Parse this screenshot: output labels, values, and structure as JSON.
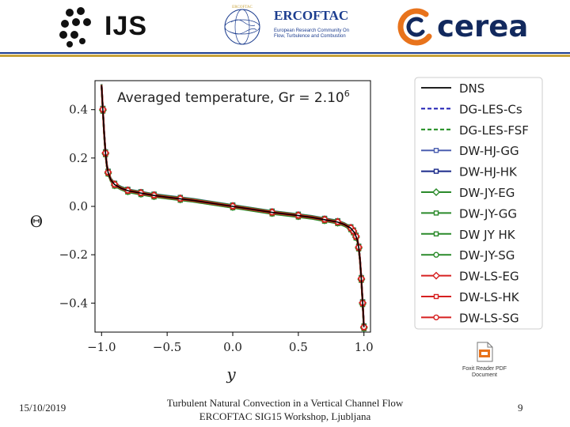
{
  "header": {
    "ijs_logo": "IJS",
    "ercoftac_logo": "ERCOFTAC",
    "ercoftac_circle_text": "ERCOFTAC",
    "ercoftac_subtitle": "European Research Community On Flow, Turbulence and Combustion",
    "cerea_logo": "cerea",
    "colors": {
      "rule_blue": "#1c3d8f",
      "rule_gold": "#c8a33a",
      "cerea_orange": "#e8731c"
    }
  },
  "chart_data": {
    "type": "line",
    "title": "Averaged temperature, Gr = 2.10",
    "title_exponent": "6",
    "xlabel": "y",
    "ylabel": "Θ",
    "xlim": [
      -1.05,
      1.05
    ],
    "ylim": [
      -0.52,
      0.52
    ],
    "xticks": [
      -1.0,
      -0.5,
      0.0,
      0.5,
      1.0
    ],
    "xtick_labels": [
      "−1.0",
      "−0.5",
      "0.0",
      "0.5",
      "1.0"
    ],
    "yticks": [
      -0.4,
      -0.2,
      0.0,
      0.2,
      0.4
    ],
    "ytick_labels": [
      "−0.4",
      "−0.2",
      "0.0",
      "0.2",
      "0.4"
    ],
    "grid": false,
    "legend_position": "outside-right",
    "profile_x": [
      -1.0,
      -0.99,
      -0.98,
      -0.97,
      -0.96,
      -0.95,
      -0.93,
      -0.9,
      -0.85,
      -0.8,
      -0.7,
      -0.6,
      -0.5,
      -0.3,
      0.0,
      0.3,
      0.5,
      0.6,
      0.7,
      0.8,
      0.85,
      0.9,
      0.93,
      0.95,
      0.96,
      0.97,
      0.98,
      0.99,
      1.0
    ],
    "profile_y": [
      0.5,
      0.4,
      0.3,
      0.22,
      0.17,
      0.14,
      0.11,
      0.09,
      0.075,
      0.065,
      0.055,
      0.045,
      0.038,
      0.025,
      0.0,
      -0.025,
      -0.038,
      -0.045,
      -0.055,
      -0.065,
      -0.075,
      -0.09,
      -0.11,
      -0.14,
      -0.17,
      -0.22,
      -0.3,
      -0.4,
      -0.5
    ],
    "marker_x": [
      -0.99,
      -0.97,
      -0.95,
      -0.9,
      -0.8,
      -0.7,
      -0.6,
      -0.4,
      0.0,
      0.3,
      0.5,
      0.7,
      0.8,
      0.9,
      0.92,
      0.94,
      0.96,
      0.98,
      0.99,
      1.0
    ],
    "series": [
      {
        "name": "DNS",
        "color": "#000000",
        "dash": "solid",
        "marker": "none",
        "offset": 0.0
      },
      {
        "name": "DG-LES-Cs",
        "color": "#1f1fb4",
        "dash": "dashed",
        "marker": "none",
        "offset": 0.004
      },
      {
        "name": "DG-LES-FSF",
        "color": "#1a8a1a",
        "dash": "dashed",
        "marker": "none",
        "offset": -0.004
      },
      {
        "name": "DW-HJ-GG",
        "color": "#4b5fb0",
        "dash": "solid",
        "marker": "square",
        "offset": 0.006
      },
      {
        "name": "DW-HJ-HK",
        "color": "#1a2a8a",
        "dash": "solid",
        "marker": "square",
        "offset": 0.003
      },
      {
        "name": "DW-JY-EG",
        "color": "#2a8a2a",
        "dash": "solid",
        "marker": "diamond",
        "offset": -0.003
      },
      {
        "name": "DW-JY-GG",
        "color": "#2a8a2a",
        "dash": "solid",
        "marker": "square",
        "offset": -0.006
      },
      {
        "name": "DW JY HK",
        "color": "#2a8a2a",
        "dash": "solid",
        "marker": "square",
        "offset": 0.005
      },
      {
        "name": "DW-JY-SG",
        "color": "#2a8a2a",
        "dash": "solid",
        "marker": "circle",
        "offset": -0.005
      },
      {
        "name": "DW-LS-EG",
        "color": "#d62020",
        "dash": "solid",
        "marker": "diamond",
        "offset": 0.002
      },
      {
        "name": "DW-LS-HK",
        "color": "#d62020",
        "dash": "solid",
        "marker": "square",
        "offset": -0.002
      },
      {
        "name": "DW-LS-SG",
        "color": "#d62020",
        "dash": "solid",
        "marker": "circle",
        "offset": 0.001
      }
    ]
  },
  "pdf_icon": {
    "label": "Foxit Reader PDF Document",
    "icon": "pdf-file-icon"
  },
  "footer": {
    "date": "15/10/2019",
    "title_line1": "Turbulent Natural Convection in a Vertical Channel Flow",
    "title_line2": "ERCOFTAC SIG15 Workshop, Ljubljana",
    "page": "9"
  }
}
